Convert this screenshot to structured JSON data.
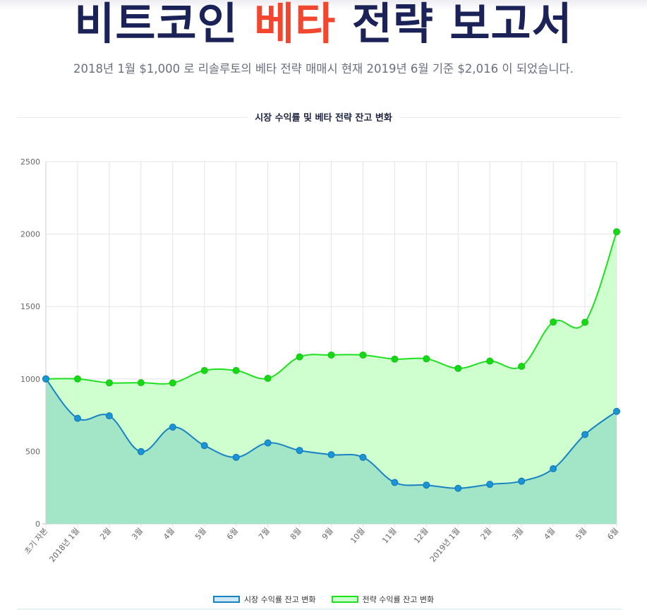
{
  "header": {
    "title_part1": "비트코인 ",
    "title_accent": "베타",
    "title_part2": " 전략 보고서",
    "subtitle": "2018년 1월 $1,000 로 리솔루토의 베타 전략 매매시 현재 2019년 6월 기준 $2,016 이 되었습니다."
  },
  "colors": {
    "title": "#1a2257",
    "accent": "#f2462e",
    "market_line": "#1783c4",
    "market_fill": "#a3e6c7",
    "strategy_line": "#1fe01f",
    "strategy_fill": "#ccffcc"
  },
  "chart_data": {
    "type": "area",
    "title": "시장 수익률 및 베타 전략 잔고 변화",
    "categories": [
      "초기 자본",
      "2018년 1월",
      "2월",
      "3월",
      "4월",
      "5월",
      "6월",
      "7월",
      "8월",
      "9월",
      "10월",
      "11월",
      "12월",
      "2019년 1월",
      "2월",
      "3월",
      "4월",
      "5월",
      "6월"
    ],
    "series": [
      {
        "name": "시장 수익률 잔고 변화",
        "values": [
          1000,
          728,
          745,
          498,
          667,
          540,
          459,
          558,
          506,
          477,
          459,
          285,
          267,
          245,
          272,
          294,
          380,
          616,
          776
        ]
      },
      {
        "name": "전략 수익률 잔고 변화",
        "values": [
          1000,
          1000,
          973,
          974,
          972,
          1058,
          1058,
          1004,
          1152,
          1165,
          1165,
          1137,
          1139,
          1073,
          1123,
          1087,
          1393,
          1391,
          2016
        ]
      }
    ],
    "yticks": [
      "0",
      "500",
      "1000",
      "1500",
      "2000",
      "2500"
    ],
    "ylim": [
      0,
      2500
    ],
    "grid": true,
    "legend": "bottom"
  }
}
